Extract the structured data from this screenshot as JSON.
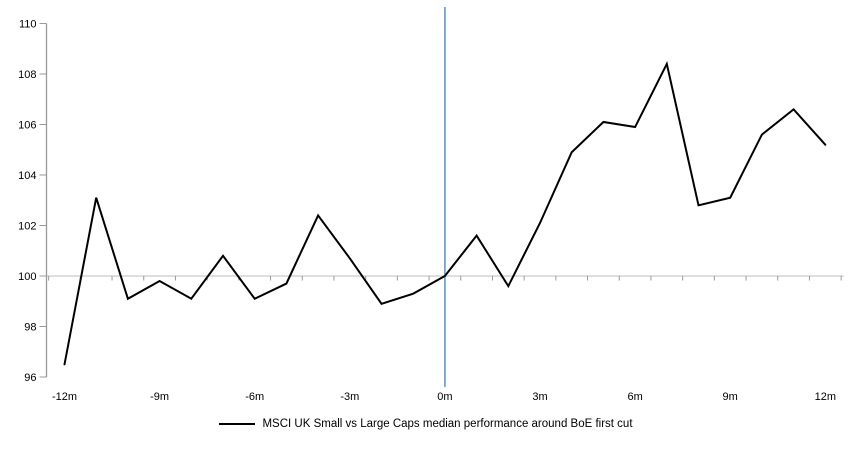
{
  "chart_data": {
    "type": "line",
    "title": "",
    "legend": "MSCI UK Small vs Large Caps median performance around BoE first cut",
    "x_months": [
      -12,
      -11,
      -10,
      -9,
      -8,
      -7,
      -6,
      -5,
      -4,
      -3,
      -2,
      -1,
      0,
      1,
      2,
      3,
      4,
      5,
      6,
      7,
      8,
      9,
      10,
      11,
      12
    ],
    "series": [
      {
        "name": "MSCI UK Small vs Large Caps median performance around BoE first cut",
        "color": "#000000",
        "values": [
          96.5,
          103.1,
          99.1,
          99.8,
          99.1,
          100.8,
          99.1,
          99.7,
          102.4,
          100.7,
          98.9,
          99.3,
          100.0,
          101.6,
          99.6,
          102.1,
          104.9,
          106.1,
          105.9,
          108.4,
          102.8,
          103.1,
          105.6,
          106.6,
          105.2
        ]
      }
    ],
    "ylim": [
      96,
      110
    ],
    "y_ticks": [
      96,
      98,
      100,
      102,
      104,
      106,
      108,
      110
    ],
    "x_tick_labels": [
      "-12m",
      "-9m",
      "-6m",
      "-3m",
      "0m",
      "3m",
      "6m",
      "9m",
      "12m"
    ],
    "x_tick_month_positions": [
      -12,
      -9,
      -6,
      -3,
      0,
      3,
      6,
      9,
      12
    ],
    "baseline_value": 100,
    "event_line_month": 0,
    "grid": "baseline-only",
    "legend_position": "bottom-center",
    "colors": {
      "series_line": "#000000",
      "event_line": "#5B9BD5",
      "axis": "#999999",
      "baseline": "#c9c9c9",
      "tick_text": "#000000",
      "background": "#ffffff"
    }
  }
}
